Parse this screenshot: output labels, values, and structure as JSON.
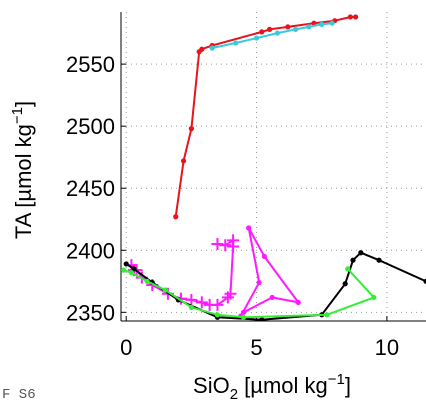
{
  "chart_data": {
    "type": "line",
    "title": "",
    "xlabel": {
      "base": "SiO",
      "sub": "2",
      "tail": " [µmol kg",
      "sup": "−1",
      "end": "]"
    },
    "ylabel": {
      "text": "TA [µmol kg",
      "sup": "−1",
      "end": "]"
    },
    "stray_text": "F S6",
    "xlim": [
      -0.2,
      11.5
    ],
    "ylim": [
      2343,
      2592
    ],
    "xticks": [
      0,
      5,
      10
    ],
    "xtick_labels": [
      "0",
      "5",
      "10"
    ],
    "yticks": [
      2350,
      2400,
      2450,
      2500,
      2550
    ],
    "ytick_labels": [
      "2350",
      "2400",
      "2450",
      "2500",
      "2550"
    ],
    "grid": true,
    "grid_style": "dotted",
    "colors": {
      "red": "#e8141c",
      "cyan": "#38cbe0",
      "magenta": "#ff1aff",
      "black": "#000000",
      "green": "#33ee33",
      "grid": "#999999"
    },
    "series": [
      {
        "color": "red",
        "marker": "dot",
        "x": [
          1.9,
          2.2,
          2.5,
          2.8,
          2.9,
          3.3,
          5.2,
          5.5,
          6.2,
          7.2,
          8.0,
          8.6,
          8.8
        ],
        "y": [
          2427,
          2472,
          2498,
          2560,
          2562,
          2565,
          2576,
          2578,
          2580,
          2583,
          2585,
          2588,
          2588
        ]
      },
      {
        "color": "cyan",
        "marker": "dot",
        "x": [
          3.3,
          4.2,
          5.0,
          5.8,
          6.5,
          7.0,
          7.5,
          7.9
        ],
        "y": [
          2563,
          2567,
          2571,
          2575,
          2578,
          2580,
          2582,
          2583
        ]
      },
      {
        "color": "magenta",
        "marker": "dot",
        "x": [
          4.7,
          5.3,
          6.6,
          5.6,
          4.5,
          4.4,
          5.1,
          4.7
        ],
        "y": [
          2418,
          2395,
          2358,
          2362,
          2350,
          2347,
          2374,
          2418
        ]
      },
      {
        "color": "magenta",
        "marker": "plus",
        "x": [
          0.2,
          0.3,
          0.4,
          0.6,
          1.0,
          1.6,
          2.1,
          2.5,
          2.9,
          3.2,
          3.5,
          3.9,
          4.0,
          4.1,
          4.1,
          3.8,
          3.5
        ],
        "y": [
          2388,
          2384,
          2384,
          2378,
          2372,
          2365,
          2361,
          2360,
          2358,
          2356,
          2356,
          2362,
          2365,
          2403,
          2408,
          2404,
          2405
        ]
      },
      {
        "color": "black",
        "marker": "dot",
        "x": [
          0.0,
          0.3,
          1.0,
          2.0,
          3.5,
          5.2,
          7.5,
          8.4,
          8.7,
          9.0,
          9.7,
          11.5
        ],
        "y": [
          2389,
          2385,
          2374,
          2360,
          2346,
          2344,
          2348,
          2373,
          2392,
          2398,
          2392,
          2375
        ]
      },
      {
        "color": "green",
        "marker": "dot",
        "x": [
          -0.1,
          0.2,
          0.8,
          1.5,
          2.5,
          3.5,
          4.5,
          7.7,
          9.5,
          8.5
        ],
        "y": [
          2384,
          2382,
          2375,
          2368,
          2354,
          2348,
          2346,
          2348,
          2362,
          2385
        ]
      }
    ]
  }
}
